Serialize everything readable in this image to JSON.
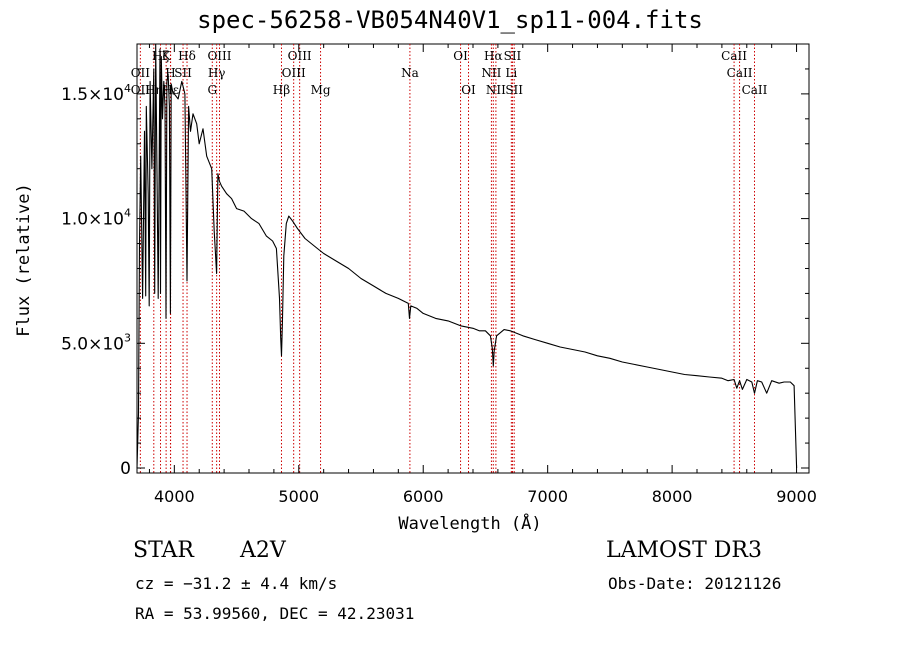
{
  "figure": {
    "title": "spec-56258-VB054N40V1_sp11-004.fits",
    "object_class": "STAR",
    "subclass": "A2V",
    "survey": "LAMOST DR3",
    "redshift_line": "cz = −31.2 ± 4.4 km/s",
    "obs_date_line": "Obs-Date: 20121126",
    "coords_line": "RA =  53.99560, DEC =  42.23031"
  },
  "chart_data": {
    "type": "line",
    "title": "spec-56258-VB054N40V1_sp11-004.fits",
    "xlabel": "Wavelength (Å)",
    "ylabel": "Flux (relative)",
    "xlim": [
      3700,
      9100
    ],
    "ylim": [
      -200,
      17000
    ],
    "xticks": [
      4000,
      5000,
      6000,
      7000,
      8000,
      9000
    ],
    "xtick_labels": [
      "4000",
      "5000",
      "6000",
      "7000",
      "8000",
      "9000"
    ],
    "yticks": [
      0,
      5000,
      10000,
      15000
    ],
    "ytick_labels": [
      {
        "mant": "0",
        "exp": ""
      },
      {
        "mant": "5.0×10",
        "exp": "3"
      },
      {
        "mant": "1.0×10",
        "exp": "4"
      },
      {
        "mant": "1.5×10",
        "exp": "4"
      }
    ],
    "series": [
      {
        "name": "flux",
        "x": [
          3700,
          3712,
          3720,
          3730,
          3745,
          3760,
          3770,
          3775,
          3790,
          3798,
          3805,
          3820,
          3835,
          3842,
          3850,
          3862,
          3870,
          3885,
          3889,
          3895,
          3905,
          3915,
          3925,
          3933,
          3940,
          3950,
          3960,
          3968,
          3975,
          3990,
          4000,
          4030,
          4060,
          4085,
          4102,
          4115,
          4130,
          4150,
          4180,
          4200,
          4230,
          4260,
          4300,
          4320,
          4340,
          4350,
          4362,
          4380,
          4420,
          4460,
          4500,
          4560,
          4620,
          4680,
          4740,
          4790,
          4820,
          4845,
          4855,
          4861,
          4868,
          4880,
          4900,
          4920,
          4950,
          4990,
          5050,
          5100,
          5150,
          5200,
          5300,
          5400,
          5500,
          5600,
          5700,
          5800,
          5880,
          5890,
          5900,
          5950,
          6000,
          6100,
          6200,
          6300,
          6400,
          6450,
          6500,
          6540,
          6555,
          6563,
          6570,
          6590,
          6650,
          6700,
          6800,
          6900,
          7000,
          7100,
          7200,
          7300,
          7400,
          7500,
          7600,
          7700,
          7800,
          7900,
          8000,
          8100,
          8200,
          8300,
          8400,
          8450,
          8498,
          8520,
          8542,
          8565,
          8600,
          8640,
          8662,
          8685,
          8720,
          8760,
          8800,
          8860,
          8900,
          8950,
          8980,
          9000
        ],
        "values": [
          0,
          2200,
          9000,
          12500,
          6800,
          13500,
          6900,
          14500,
          11000,
          6500,
          15500,
          12000,
          16000,
          7000,
          17000,
          11000,
          6800,
          16800,
          7000,
          16500,
          14000,
          15500,
          14500,
          6000,
          15500,
          15800,
          14500,
          6200,
          15400,
          15000,
          15000,
          14800,
          15500,
          15000,
          7500,
          14500,
          13500,
          14200,
          13800,
          13000,
          13600,
          12500,
          12000,
          9500,
          7800,
          11800,
          11500,
          11300,
          11000,
          10800,
          10400,
          10300,
          10000,
          9800,
          9300,
          9100,
          8800,
          6800,
          5200,
          4500,
          5800,
          8500,
          9800,
          10100,
          9900,
          9600,
          9200,
          9000,
          8800,
          8600,
          8300,
          8000,
          7600,
          7300,
          7000,
          6800,
          6600,
          6000,
          6500,
          6400,
          6200,
          6000,
          5900,
          5700,
          5600,
          5500,
          5500,
          5300,
          4800,
          4100,
          4700,
          5300,
          5550,
          5500,
          5300,
          5150,
          5000,
          4850,
          4750,
          4650,
          4500,
          4400,
          4250,
          4150,
          4050,
          3950,
          3850,
          3750,
          3700,
          3650,
          3600,
          3500,
          3550,
          3200,
          3500,
          3150,
          3550,
          3450,
          3000,
          3500,
          3450,
          3000,
          3500,
          3400,
          3450,
          3450,
          3300,
          0
        ]
      }
    ],
    "annotations": [
      {
        "label": "Hζ",
        "x": 3889,
        "row": 0
      },
      {
        "label": "OII",
        "x": 3727,
        "row": 1
      },
      {
        "label": "OII",
        "x": 3727,
        "row": 2
      },
      {
        "label": "K",
        "x": 3934,
        "row": 0
      },
      {
        "label": "H",
        "x": 3969,
        "row": 1
      },
      {
        "label": "Hη",
        "x": 3835,
        "row": 2
      },
      {
        "label": "Hε",
        "x": 3970,
        "row": 2
      },
      {
        "label": "Hδ",
        "x": 4102,
        "row": 0
      },
      {
        "label": "SII",
        "x": 4070,
        "row": 1
      },
      {
        "label": "OIII",
        "x": 4363,
        "row": 0
      },
      {
        "label": "Hγ",
        "x": 4340,
        "row": 1
      },
      {
        "label": "G",
        "x": 4305,
        "row": 2
      },
      {
        "label": "Hβ",
        "x": 4861,
        "row": 2
      },
      {
        "label": "OIII",
        "x": 4959,
        "row": 1
      },
      {
        "label": "OIII",
        "x": 5007,
        "row": 0
      },
      {
        "label": "Mg",
        "x": 5175,
        "row": 2
      },
      {
        "label": "Na",
        "x": 5893,
        "row": 1
      },
      {
        "label": "OI",
        "x": 6300,
        "row": 0
      },
      {
        "label": "OI",
        "x": 6364,
        "row": 2
      },
      {
        "label": "Hα",
        "x": 6563,
        "row": 0
      },
      {
        "label": "NII",
        "x": 6548,
        "row": 1
      },
      {
        "label": "NII",
        "x": 6584,
        "row": 2
      },
      {
        "label": "SII",
        "x": 6717,
        "row": 0
      },
      {
        "label": "Li",
        "x": 6708,
        "row": 1
      },
      {
        "label": "SII",
        "x": 6731,
        "row": 2
      },
      {
        "label": "CaII",
        "x": 8542,
        "row": 1
      },
      {
        "label": "CaII",
        "x": 8498,
        "row": 0
      },
      {
        "label": "CaII",
        "x": 8662,
        "row": 2
      }
    ]
  }
}
